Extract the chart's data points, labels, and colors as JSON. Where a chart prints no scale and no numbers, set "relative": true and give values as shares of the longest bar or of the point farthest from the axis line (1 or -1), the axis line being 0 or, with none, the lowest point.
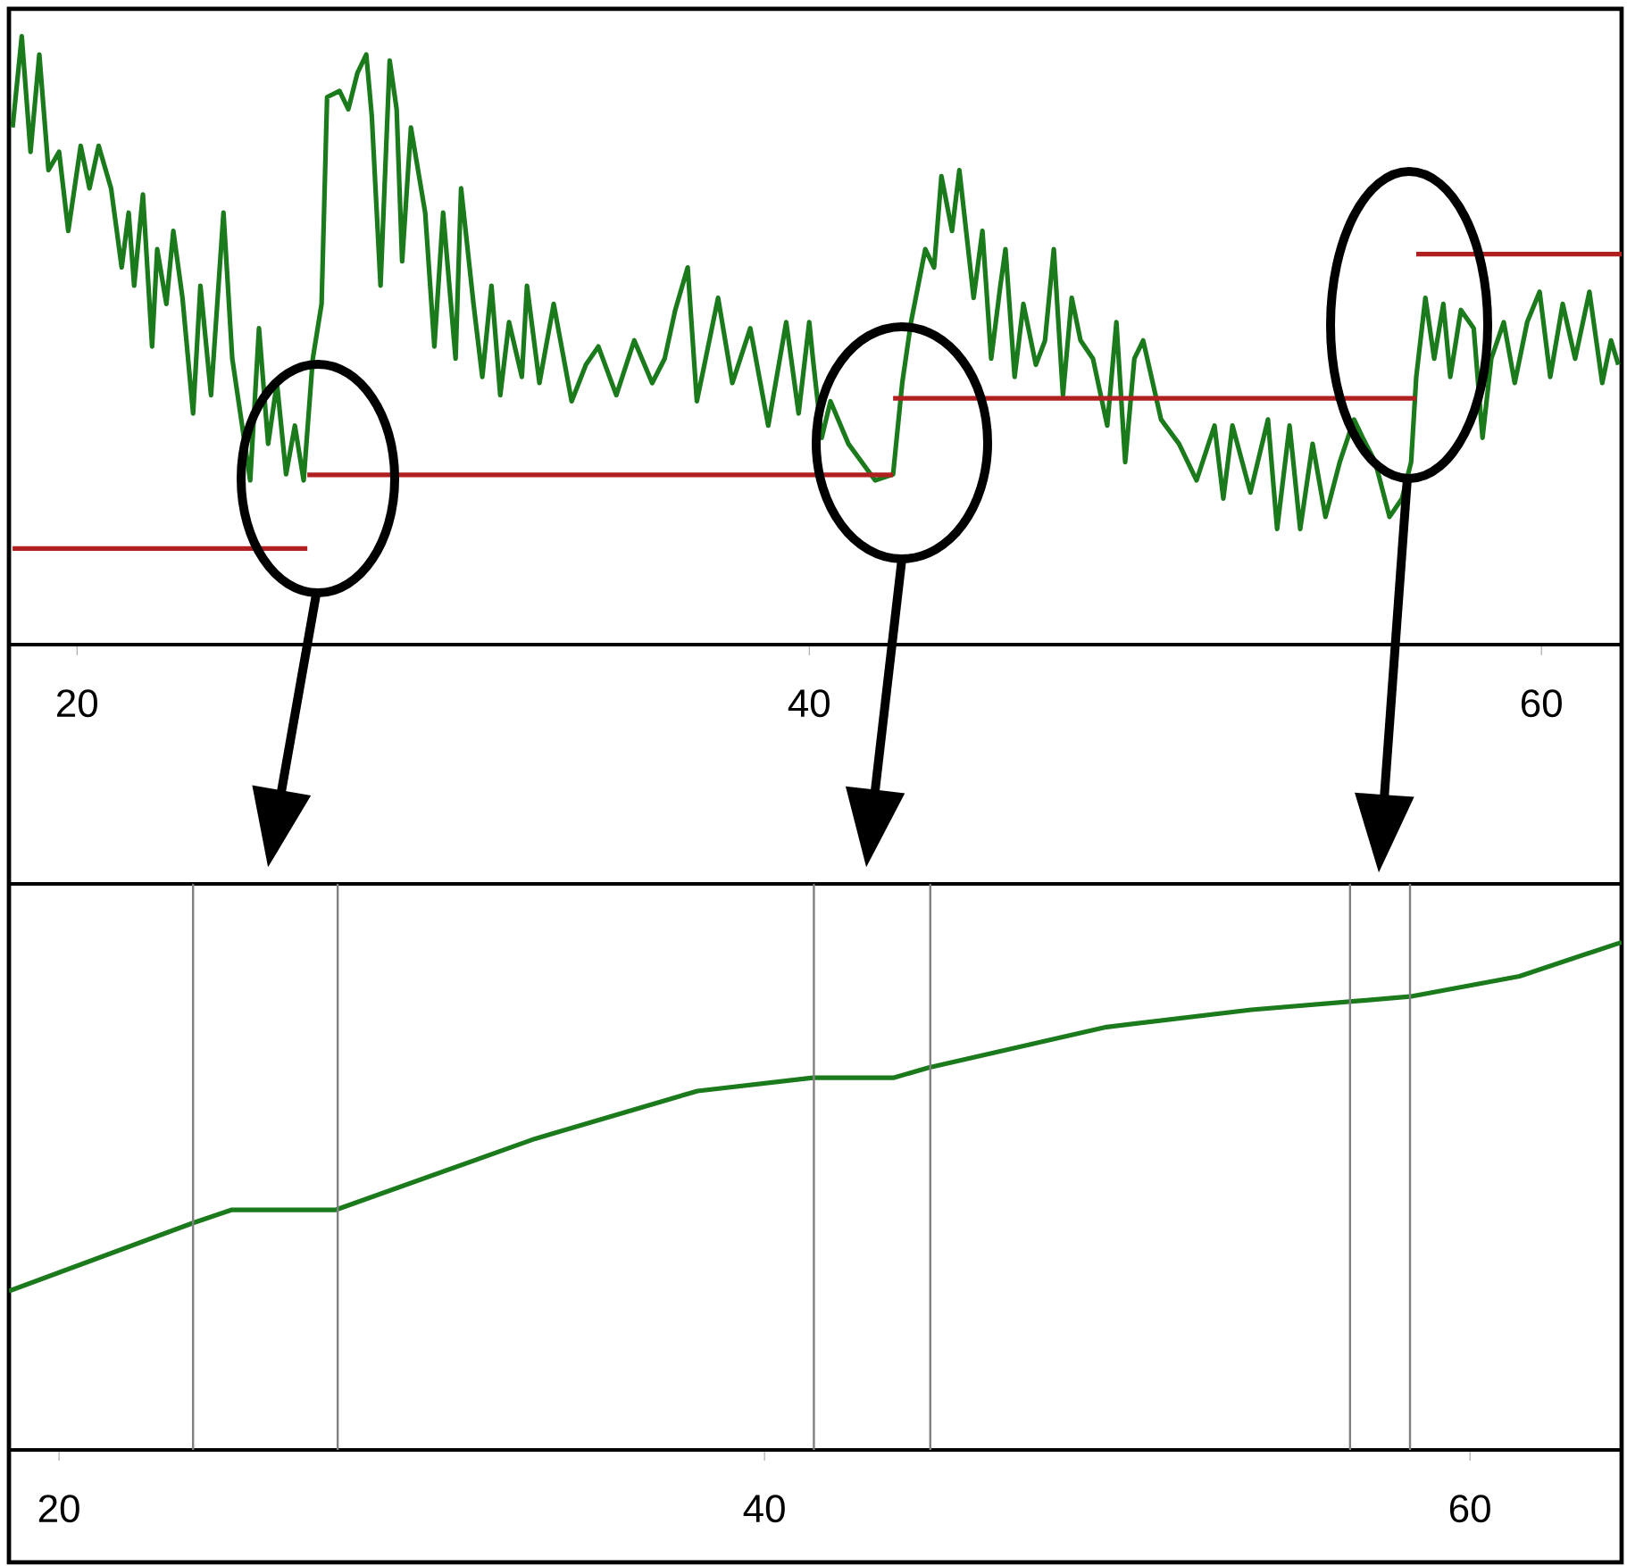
{
  "chart_data": [
    {
      "type": "line",
      "relative": true,
      "xlim": [
        18.14,
        62.19
      ],
      "xticks": [
        20,
        40,
        60
      ],
      "grid": false,
      "series": [
        {
          "color": "#1b7a1b",
          "x": [
            18.24,
            18.49,
            18.73,
            18.97,
            19.22,
            19.51,
            19.76,
            20.1,
            20.34,
            20.59,
            20.93,
            21.22,
            21.41,
            21.56,
            21.8,
            22.05,
            22.19,
            22.44,
            22.63,
            22.88,
            23.17,
            23.37,
            23.66,
            24.0,
            24.24,
            24.73,
            24.97,
            25.22,
            25.46,
            25.71,
            25.95,
            26.19,
            26.44,
            26.68,
            26.83,
            27.17,
            27.41,
            27.66,
            27.9,
            28.05,
            28.29,
            28.54,
            28.73,
            28.88,
            29.12,
            29.51,
            29.76,
            30.0,
            30.34,
            30.49,
            30.83,
            31.07,
            31.32,
            31.56,
            31.8,
            32.15,
            32.29,
            32.63,
            33.02,
            33.51,
            33.9,
            34.24,
            34.73,
            35.22,
            35.71,
            36.05,
            36.34,
            36.68,
            36.93,
            37.17,
            37.51,
            37.9,
            38.39,
            38.88,
            39.37,
            39.71,
            40.0,
            40.1,
            40.34,
            40.58,
            41.07,
            41.8,
            42.29,
            42.54,
            42.78,
            43.17,
            43.41,
            43.61,
            43.9,
            44.1,
            44.49,
            44.73,
            44.97,
            45.22,
            45.36,
            45.61,
            45.85,
            46.19,
            46.44,
            46.68,
            46.93,
            47.17,
            47.41,
            47.75,
            48.14,
            48.39,
            48.63,
            48.88,
            49.12,
            49.61,
            50.1,
            50.58,
            51.07,
            51.31,
            51.56,
            52.05,
            52.53,
            52.78,
            53.12,
            53.41,
            53.75,
            54.1,
            54.49,
            54.88,
            55.12,
            55.46,
            55.85,
            56.19,
            56.44,
            56.58,
            56.83,
            57.07,
            57.32,
            57.51,
            57.8,
            58.15,
            58.39,
            58.63,
            58.97,
            59.27,
            59.61,
            59.95,
            60.24,
            60.58,
            60.92,
            61.31,
            61.66,
            61.9,
            62.1
          ],
          "values": [
            0.85,
            1.0,
            0.81,
            0.97,
            0.78,
            0.81,
            0.68,
            0.82,
            0.75,
            0.82,
            0.75,
            0.62,
            0.71,
            0.59,
            0.74,
            0.49,
            0.65,
            0.56,
            0.68,
            0.57,
            0.38,
            0.59,
            0.41,
            0.71,
            0.47,
            0.27,
            0.52,
            0.33,
            0.43,
            0.28,
            0.36,
            0.27,
            0.47,
            0.56,
            0.9,
            0.91,
            0.88,
            0.94,
            0.97,
            0.87,
            0.59,
            0.96,
            0.88,
            0.63,
            0.85,
            0.71,
            0.49,
            0.71,
            0.47,
            0.75,
            0.56,
            0.44,
            0.59,
            0.41,
            0.53,
            0.44,
            0.59,
            0.43,
            0.56,
            0.4,
            0.46,
            0.49,
            0.41,
            0.5,
            0.43,
            0.47,
            0.55,
            0.62,
            0.4,
            0.47,
            0.57,
            0.43,
            0.52,
            0.36,
            0.53,
            0.38,
            0.53,
            0.47,
            0.34,
            0.4,
            0.33,
            0.27,
            0.28,
            0.43,
            0.53,
            0.65,
            0.62,
            0.77,
            0.68,
            0.78,
            0.57,
            0.68,
            0.47,
            0.59,
            0.65,
            0.44,
            0.56,
            0.46,
            0.5,
            0.65,
            0.41,
            0.57,
            0.5,
            0.47,
            0.36,
            0.53,
            0.3,
            0.47,
            0.5,
            0.37,
            0.33,
            0.27,
            0.36,
            0.24,
            0.36,
            0.25,
            0.37,
            0.19,
            0.36,
            0.19,
            0.33,
            0.21,
            0.3,
            0.37,
            0.34,
            0.3,
            0.21,
            0.24,
            0.3,
            0.44,
            0.57,
            0.47,
            0.56,
            0.44,
            0.55,
            0.52,
            0.34,
            0.47,
            0.53,
            0.43,
            0.53,
            0.58,
            0.44,
            0.56,
            0.47,
            0.58,
            0.43,
            0.5,
            0.46
          ]
        },
        {
          "color": "#b02020",
          "x": [
            18.24,
            26.29
          ],
          "values": [
            0.158,
            0.158
          ]
        },
        {
          "color": "#b02020",
          "x": [
            26.29,
            42.29
          ],
          "values": [
            0.279,
            0.279
          ]
        },
        {
          "color": "#b02020",
          "x": [
            42.29,
            56.58
          ],
          "values": [
            0.405,
            0.405
          ]
        },
        {
          "color": "#b02020",
          "x": [
            56.58,
            62.19
          ],
          "values": [
            0.642,
            0.642
          ]
        }
      ]
    },
    {
      "type": "line",
      "relative": true,
      "xlim": [
        18.58,
        64.3
      ],
      "xticks": [
        20,
        40,
        60
      ],
      "grid": false,
      "series": [
        {
          "color": "#1b7a1b",
          "x": [
            18.58,
            23.8,
            24.9,
            27.85,
            33.5,
            38.1,
            41.37,
            43.65,
            44.66,
            49.7,
            53.8,
            58.3,
            61.4,
            64.3
          ],
          "values": [
            0.313,
            0.447,
            0.473,
            0.473,
            0.613,
            0.707,
            0.733,
            0.733,
            0.753,
            0.833,
            0.867,
            0.893,
            0.933,
            1
          ]
        }
      ],
      "ref_lines": [
        {
          "axis": "x",
          "value": 23.8,
          "color": "#808080"
        },
        {
          "axis": "x",
          "value": 27.9,
          "color": "#808080"
        },
        {
          "axis": "x",
          "value": 41.4,
          "color": "#808080"
        },
        {
          "axis": "x",
          "value": 44.7,
          "color": "#808080"
        },
        {
          "axis": "x",
          "value": 56.6,
          "color": "#808080"
        },
        {
          "axis": "x",
          "value": 58.3,
          "color": "#808080"
        }
      ]
    }
  ]
}
